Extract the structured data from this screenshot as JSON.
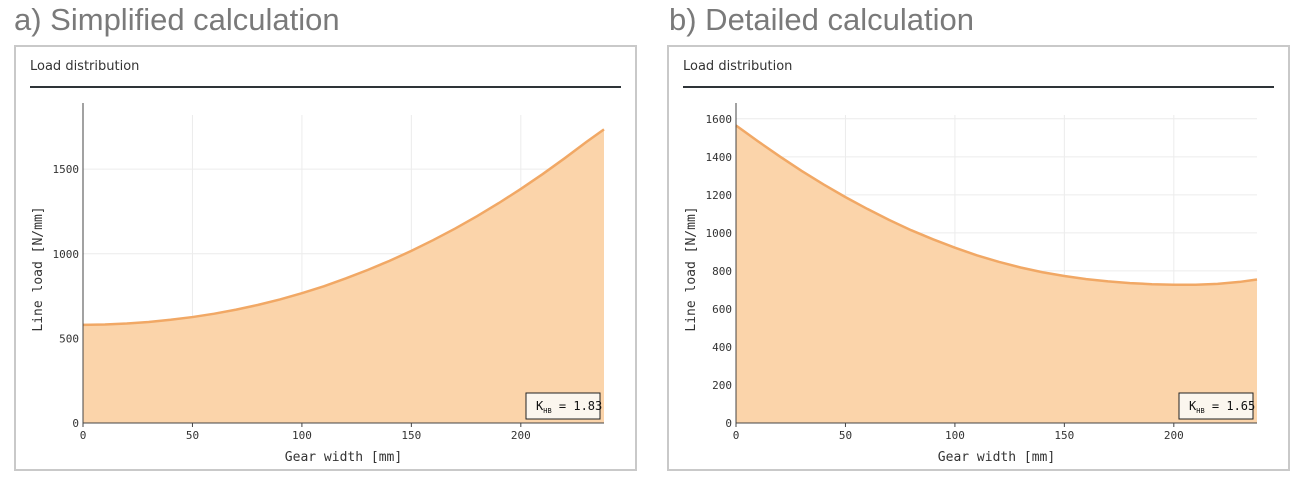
{
  "titles": {
    "a": "a) Simplified calculation",
    "b": "b) Detailed calculation"
  },
  "colors": {
    "fill": "#fbd4aa",
    "line": "#f1a865",
    "grid": "#ececec",
    "axis": "#444444",
    "text": "#333333"
  },
  "chart_data": [
    {
      "type": "area",
      "panel_title": "Load distribution",
      "xlabel": "Gear width [mm]",
      "ylabel": "Line load [N/mm]",
      "xlim": [
        0,
        238
      ],
      "ylim": [
        0,
        1820
      ],
      "xticks": [
        0,
        50,
        100,
        150,
        200
      ],
      "yticks": [
        0,
        500,
        1000,
        1500
      ],
      "grid": true,
      "annotation": {
        "prefix": "K",
        "sub": "HB",
        "text": " = 1.83"
      },
      "x": [
        0,
        10,
        20,
        30,
        40,
        50,
        60,
        70,
        80,
        90,
        100,
        110,
        120,
        130,
        140,
        150,
        160,
        170,
        180,
        190,
        200,
        210,
        220,
        230,
        238
      ],
      "y": [
        580,
        582,
        588,
        597,
        610,
        626,
        646,
        670,
        698,
        730,
        767,
        808,
        854,
        904,
        958,
        1017,
        1081,
        1149,
        1222,
        1300,
        1383,
        1471,
        1564,
        1661,
        1735
      ]
    },
    {
      "type": "area",
      "panel_title": "Load distribution",
      "xlabel": "Gear width [mm]",
      "ylabel": "Line load [N/mm]",
      "xlim": [
        0,
        238
      ],
      "ylim": [
        0,
        1620
      ],
      "xticks": [
        0,
        50,
        100,
        150,
        200
      ],
      "yticks": [
        0,
        200,
        400,
        600,
        800,
        1000,
        1200,
        1400,
        1600
      ],
      "grid": true,
      "annotation": {
        "prefix": "K",
        "sub": "HB",
        "text": " = 1.65"
      },
      "x": [
        0,
        10,
        20,
        30,
        40,
        50,
        60,
        70,
        80,
        90,
        100,
        110,
        120,
        130,
        140,
        150,
        160,
        170,
        180,
        190,
        200,
        210,
        220,
        230,
        238
      ],
      "y": [
        1565,
        1482,
        1402,
        1326,
        1255,
        1188,
        1126,
        1068,
        1014,
        966,
        922,
        882,
        848,
        818,
        793,
        773,
        757,
        745,
        736,
        730,
        727,
        727,
        732,
        742,
        755
      ]
    }
  ]
}
